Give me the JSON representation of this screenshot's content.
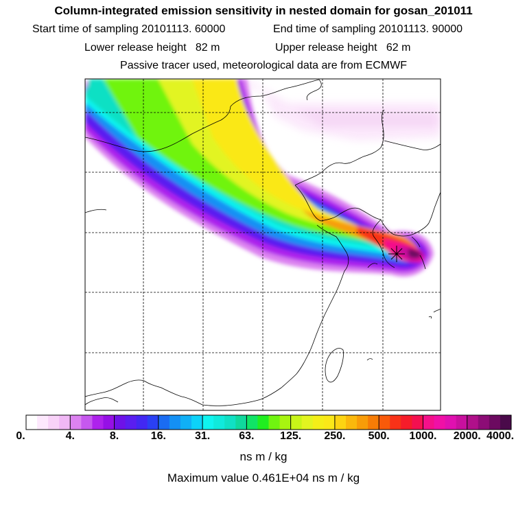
{
  "title": "Column-integrated emission sensitivity in nested domain for gosan_201011",
  "sampling": {
    "start": "Start time of sampling 20101113. 60000",
    "end": "End time of sampling 20101113. 90000"
  },
  "release": {
    "lower": "Lower release height   82 m",
    "upper": "Upper release height   62 m"
  },
  "tracer_note": "Passive tracer used, meteorological data are from ECMWF",
  "colorbar": {
    "ticks": [
      "0.",
      "4.",
      "8.",
      "16.",
      "31.",
      "63.",
      "125.",
      "250.",
      "500.",
      "1000.",
      "2000.",
      "4000."
    ],
    "colors": [
      "#ffffff",
      "#fde8fd",
      "#f8d2f8",
      "#f0b8f5",
      "#dc82f0",
      "#c658ee",
      "#ae22ec",
      "#9610e6",
      "#6e12e8",
      "#5a1ef0",
      "#4228f2",
      "#2a40f4",
      "#1a6cf2",
      "#1490f4",
      "#10b0f6",
      "#0cd2f8",
      "#10f4f0",
      "#10eadc",
      "#10e0c4",
      "#10d89c",
      "#10e466",
      "#20ee20",
      "#70f410",
      "#a8f410",
      "#c8f418",
      "#e2f420",
      "#f4ee18",
      "#fae818",
      "#fcd412",
      "#fab80c",
      "#f89c08",
      "#f67c06",
      "#f85a0a",
      "#f83218",
      "#f61c2a",
      "#f41050",
      "#f4108a",
      "#f010a6",
      "#e010b0",
      "#c8109e",
      "#b0108a",
      "#8c0c76",
      "#6c0a60",
      "#4a0a4a"
    ],
    "units": "ns m / kg",
    "max_label": "Maximum value  0.461E+04 ns m / kg"
  }
}
